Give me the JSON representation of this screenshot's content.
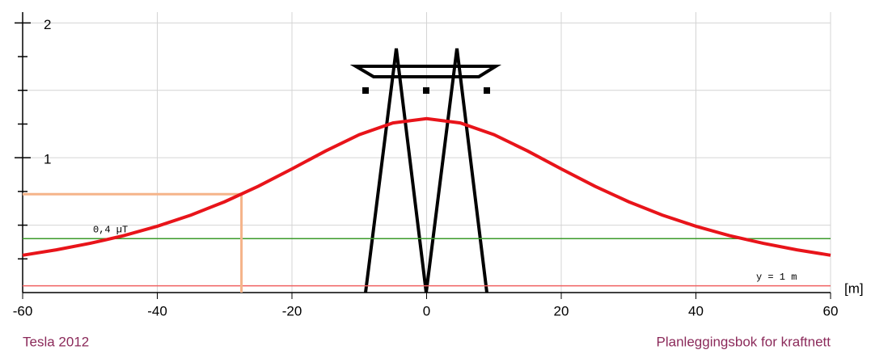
{
  "chart_data": {
    "type": "line",
    "x": [
      -60,
      -55,
      -50,
      -45,
      -40,
      -35,
      -30,
      -25,
      -20,
      -15,
      -10,
      -5,
      0,
      5,
      10,
      15,
      20,
      25,
      30,
      35,
      40,
      45,
      50,
      55,
      60
    ],
    "series": [
      {
        "color": "#e8141a",
        "values": [
          0.277,
          0.317,
          0.365,
          0.422,
          0.492,
          0.575,
          0.674,
          0.789,
          0.917,
          1.05,
          1.171,
          1.258,
          1.29,
          1.258,
          1.171,
          1.05,
          0.917,
          0.789,
          0.674,
          0.575,
          0.492,
          0.422,
          0.365,
          0.317,
          0.277
        ]
      }
    ],
    "xlim": [
      -60,
      60
    ],
    "xticks": [
      -60,
      -40,
      -20,
      0,
      20,
      40,
      60
    ],
    "ylim": [
      0,
      2.08
    ],
    "yticks": [
      1,
      2
    ],
    "minor_yticks": [
      0.25,
      0.5,
      0.75,
      1.25,
      1.5,
      1.75
    ],
    "grid_y": [
      0.5,
      1,
      1.5,
      2
    ],
    "x_unit": "[m]",
    "hlines": [
      {
        "value": 0.4,
        "label": "0,4 µT",
        "color": "#3a9a2a"
      },
      {
        "value": 0.05,
        "label": "y = 1 m",
        "color": "#f06060"
      }
    ],
    "marker": {
      "x": -27.5,
      "y": 0.73,
      "color": "#f5b48a"
    },
    "footer_left": "Tesla 2012",
    "footer_right": "Planleggingsbok for kraftnett"
  }
}
